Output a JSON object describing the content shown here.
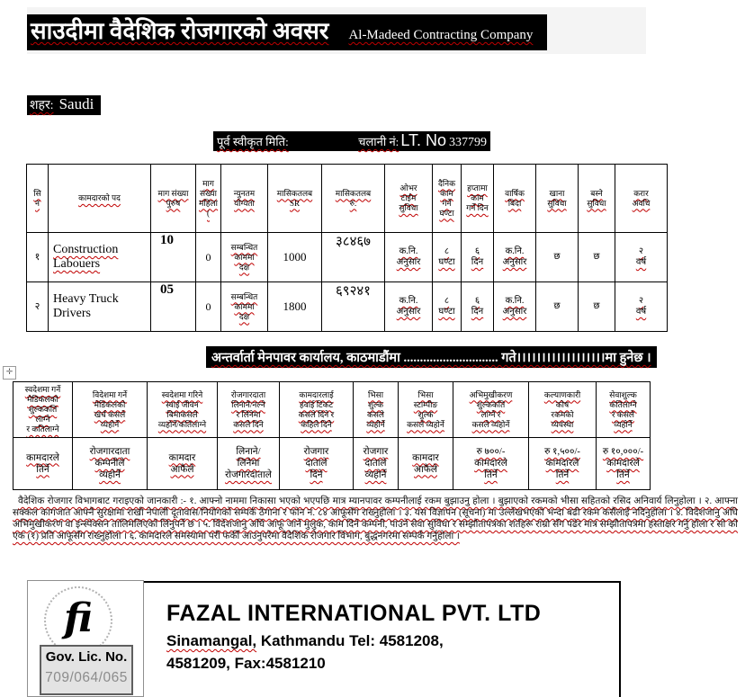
{
  "header": {
    "title": "साउदीमा वैदेशिक रोजगारको अवसर",
    "company": "Al-Madeed Contracting Company"
  },
  "city": {
    "label": "शहर:",
    "value": "Saudi"
  },
  "approval": {
    "label1": "पूर्व स्वीकृत मिति:",
    "label2": "चलानी नं:",
    "lt_label": "LT. No",
    "lt_number": "337799"
  },
  "jobs_table": {
    "headers": [
      "सि\nन",
      "कामदारको पद",
      "माग संख्या\nपुरुष",
      "माग\nसंख्या\nमहिला\n(",
      "न्युनतम\nयोग्यता",
      "मासिकतलब\nSR",
      "मासिकतलब\nरु.",
      "ओभर\nटाईम\nसुविधा",
      "दैनिक\nकाम\nगर्ने\nघण्टा",
      "हप्तामा\nकाम\nगर्ने दिन",
      "वार्षिक\nबिदा",
      "खाना\nसुविधा",
      "बस्ने\nसुविधा",
      "करार\nअवधि"
    ],
    "rows": [
      [
        "१",
        "Construction Labouers",
        "10",
        "0",
        "सम्बन्धित\nकाममा\nदक्ष",
        "1000",
        "३८४६७",
        "क.नि.\nअनुसार",
        "८\nघण्टा",
        "६\nदिन",
        "क.नि.\nअनुसार",
        "छ",
        "छ",
        "२\nवर्ष"
      ],
      [
        "२",
        "Heavy Truck Drivers",
        "05",
        "0",
        "सम्बन्धित\nकाममा\nदक्ष",
        "1800",
        "६९२४१",
        "क.नि.\nअनुसार",
        "८\nघण्टा",
        "६\nदिन",
        "क.नि.\nअनुसार",
        "छ",
        "छ",
        "२\nवर्ष"
      ]
    ]
  },
  "interview": {
    "text": "अन्तर्वार्ता मेनपावर कार्यालय, काठमाडौंमा ............................. गते।।।।।।।।।।।।।।।।।।मा हुनेछ ।"
  },
  "fees_table": {
    "headers": [
      "स्वदेशमा गर्ने\nमेडिकलको\nशुल्ककति\nलाग्ने\nर कतिलाग्ने",
      "विदेशमा गर्ने\nमेडिकलको\nखर्च कसले\nव्यहोर्ने",
      "स्वदेशमा गरिने\nस्वाई जीवन\nबिमाकसले\nव्यहोर्ने/कतिलाग्ने",
      "रोजगारदाता\nलिनाने/नल्ने\nर लिनेमा\nकसले दिने",
      "कामदारलाई\nहवाई टिकट\nकसले दिने र\nकहिले दिने",
      "भिसा\nशुल्क\nकसले\nव्यहोर्ने",
      "भिसा\nस्टाम्पीङ\nशुल्क\nकसले व्यहोर्ने",
      "अभिमुखीकरण\nशुल्ककति\nलाग्ने र\nकसले व्यहोर्ने",
      "कल्याणकारी\nकोष\nरकमको\nव्यवस्था",
      "सेवाशुल्क\nकतिलाग्ने\nर कसले\nव्यहोर्ने"
    ],
    "values": [
      "कामदारले\nतिर्ने",
      "रोजगारदाता\nकम्पनीले\nव्यहोर्ने",
      "कामदार\nआफैले",
      "लिनाने/\nलिनेमा\nरोजगारदाताले",
      "रोजगार\nदाताले\nदिने",
      "रोजगार\nदाताले\nव्यहोर्ने",
      "कामदार\nआफैले",
      "रु ७००/-\nकामदारले\nतिर्ने",
      "रु १,५००/-\nकामदारले\nतिर्ने",
      "रु १०,०००/-\nकामदारले\nतिर्ने"
    ]
  },
  "notice": {
    "text": "वैदेशिक रोजगार विभागबाट गराइएको जानकारी :- १. आफ्नो नाममा निकासा भएको भएपछि मात्र म्यानपावर कम्पनीलाई रकम बुझाउनु होला । बुझाएको रकमको भीसा सहितको रसिद अनिवार्य लिनुहोला । २. आफ्ना सक्कल कागजात आफ्नै सुरक्षामा राखी नेपाली दूतावास/नियोगको सम्पर्क ठेगाना र फोन नं. ८४ आफूसँग राख्नुहोला । ३. यस विज्ञापन (सूचना) मा उल्लेखभएको भन्दा बढी रकम कसैलाई नदिनुहोला । ४. विदेशजानु अघि अभिमुखीकरण वा इन्स्पेक्सन तालिमलिएको लिनुपर्ने छ । ५. विदेशजानु अघि आफू जाने मुलुक, काम दिने कम्पनी, पाउने सेवा सुविधा र सम्झौतापत्रका शर्तहरू राम्रो सँग पढेर मात्र सम्झौतापत्रमा हस्ताक्षर गर्नु होला र सो को एक (१) प्रति आफूसँग राख्नुहोला । ६. कामदारले समस्यामा परी फर्की आउनुपरेमा वैदेशिक रोजगार विभाग, बुद्धनगरमा सम्पर्क गर्नुहोला ।"
  },
  "footer": {
    "company_name": "FAZAL INTERNATIONAL PVT. LTD",
    "address_line1": "Sinamangal,",
    "address_line1b": " Kathmandu Tel: 4581208,",
    "address_line2": "4581209, Fax:4581210",
    "license_label": "Gov. Lic. No.",
    "license_number": "709/064/065",
    "logo_monogram": "fi"
  },
  "icons": {
    "table_move_handle": "✛"
  },
  "colors": {
    "highlight_bg": "#000000",
    "highlight_text": "#ffffff",
    "squiggle": "#c00000",
    "strip_bg": "#f4f4f4"
  }
}
